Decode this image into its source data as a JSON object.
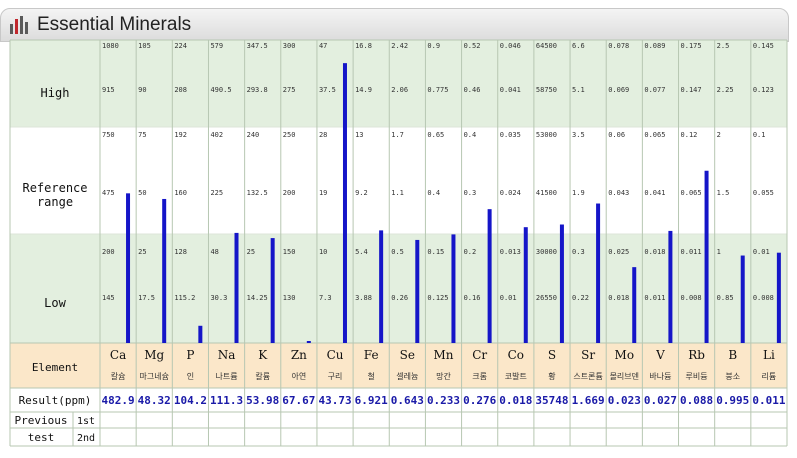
{
  "title": "Essential Minerals",
  "zone_labels": {
    "high": "High",
    "reference": "Reference\nrange",
    "low": "Low"
  },
  "row_labels": {
    "element": "Element",
    "result": "Result(ppm)",
    "previous": "Previous\ntest",
    "first": "1st",
    "second": "2nd"
  },
  "colors": {
    "bar": "#1515c8",
    "green_band": "#e3efdf",
    "header_band": "#fbe7c9",
    "value_text": "#1a1aa8",
    "grid": "#b7c7b2"
  },
  "chart_data": {
    "type": "bar",
    "categories": [
      "Ca",
      "Mg",
      "P",
      "Na",
      "K",
      "Zn",
      "Cu",
      "Fe",
      "Se",
      "Mn",
      "Cr",
      "Co",
      "S",
      "Sr",
      "Mo",
      "V",
      "Rb",
      "B",
      "Li"
    ],
    "korean_names": [
      "칼슘",
      "마그네슘",
      "인",
      "나트륨",
      "칼륨",
      "아연",
      "구리",
      "철",
      "셀레늄",
      "망간",
      "크롬",
      "코발트",
      "황",
      "스트론튬",
      "몰리브덴",
      "바나듐",
      "루비듐",
      "붕소",
      "리튬"
    ],
    "results": [
      "482.9",
      "48.32",
      "104.2",
      "111.3",
      "53.98",
      "67.67",
      "43.73",
      "6.921",
      "0.643",
      "0.233",
      "0.276",
      "0.018",
      "35748",
      "1.669",
      "0.023",
      "0.027",
      "0.088",
      "0.995",
      "0.011"
    ],
    "tick_labels": [
      [
        "1080",
        "915",
        "750",
        "475",
        "200",
        "145"
      ],
      [
        "105",
        "90",
        "75",
        "50",
        "25",
        "17.5"
      ],
      [
        "224",
        "208",
        "192",
        "160",
        "128",
        "115.2"
      ],
      [
        "579",
        "490.5",
        "402",
        "225",
        "48",
        "30.3"
      ],
      [
        "347.5",
        "293.8",
        "240",
        "132.5",
        "25",
        "14.25"
      ],
      [
        "300",
        "275",
        "250",
        "200",
        "150",
        "130"
      ],
      [
        "47",
        "37.5",
        "28",
        "19",
        "10",
        "7.3"
      ],
      [
        "16.8",
        "14.9",
        "13",
        "9.2",
        "5.4",
        "3.88"
      ],
      [
        "2.42",
        "2.06",
        "1.7",
        "1.1",
        "0.5",
        "0.26"
      ],
      [
        "0.9",
        "0.775",
        "0.65",
        "0.4",
        "0.15",
        "0.125"
      ],
      [
        "0.52",
        "0.46",
        "0.4",
        "0.3",
        "0.2",
        "0.16"
      ],
      [
        "0.046",
        "0.041",
        "0.035",
        "0.024",
        "0.013",
        "0.01"
      ],
      [
        "64500",
        "58750",
        "53000",
        "41500",
        "30000",
        "26550"
      ],
      [
        "6.6",
        "5.1",
        "3.5",
        "1.9",
        "0.3",
        "0.22"
      ],
      [
        "0.078",
        "0.069",
        "0.06",
        "0.043",
        "0.025",
        "0.018"
      ],
      [
        "0.089",
        "0.077",
        "0.065",
        "0.041",
        "0.018",
        "0.011"
      ],
      [
        "0.175",
        "0.147",
        "0.12",
        "0.065",
        "0.011",
        "0.008"
      ],
      [
        "2.5",
        "2.25",
        "2",
        "1.5",
        "1",
        "0.85"
      ],
      [
        "0.145",
        "0.123",
        "0.1",
        "0.055",
        "0.01",
        "0.008"
      ]
    ],
    "previous_1st": [
      "",
      "",
      "",
      "",
      "",
      "",
      "",
      "",
      "",
      "",
      "",
      "",
      "",
      "",
      "",
      "",
      "",
      "",
      ""
    ],
    "previous_2nd": [
      "",
      "",
      "",
      "",
      "",
      "",
      "",
      "",
      "",
      "",
      "",
      "",
      "",
      "",
      "",
      "",
      "",
      "",
      ""
    ]
  }
}
